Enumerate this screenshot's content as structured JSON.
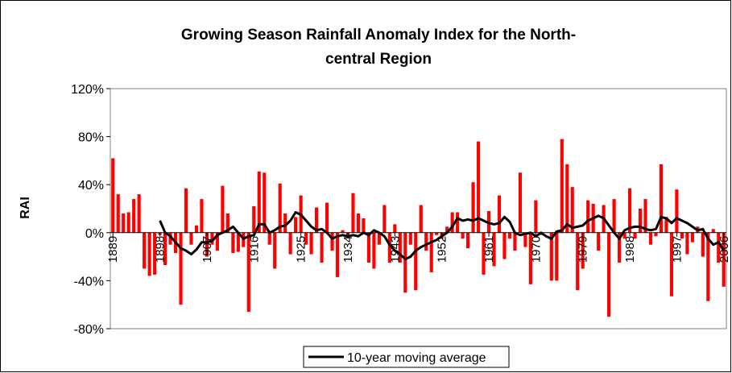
{
  "chart_data": {
    "type": "bar",
    "title": [
      "Growing Season Rainfall Anomaly Index for the North-",
      "central Region"
    ],
    "y_label": "RAI",
    "x": [
      1889,
      1890,
      1891,
      1892,
      1893,
      1894,
      1895,
      1896,
      1897,
      1898,
      1899,
      1900,
      1901,
      1902,
      1903,
      1904,
      1905,
      1906,
      1907,
      1908,
      1909,
      1910,
      1911,
      1912,
      1913,
      1914,
      1915,
      1916,
      1917,
      1918,
      1919,
      1920,
      1921,
      1922,
      1923,
      1924,
      1925,
      1926,
      1927,
      1928,
      1929,
      1930,
      1931,
      1932,
      1933,
      1934,
      1935,
      1936,
      1937,
      1938,
      1939,
      1940,
      1941,
      1942,
      1943,
      1944,
      1945,
      1946,
      1947,
      1948,
      1949,
      1950,
      1951,
      1952,
      1953,
      1954,
      1955,
      1956,
      1957,
      1958,
      1959,
      1960,
      1961,
      1962,
      1963,
      1964,
      1965,
      1966,
      1967,
      1968,
      1969,
      1970,
      1971,
      1972,
      1973,
      1974,
      1975,
      1976,
      1977,
      1978,
      1979,
      1980,
      1981,
      1982,
      1983,
      1984,
      1985,
      1986,
      1987,
      1988,
      1989,
      1990,
      1991,
      1992,
      1993,
      1994,
      1995,
      1996,
      1997,
      1998,
      1999,
      2000,
      2001,
      2002,
      2003,
      2004,
      2005,
      2006
    ],
    "xlim": [
      1888.5,
      2006.5
    ],
    "xticks": [
      1889,
      1898,
      1907,
      1916,
      1925,
      1934,
      1943,
      1952,
      1961,
      1970,
      1979,
      1988,
      1997,
      2006
    ],
    "ylim": [
      -80,
      120
    ],
    "yticks": [
      {
        "value": -80,
        "label": "-80%"
      },
      {
        "value": -40,
        "label": "-40%"
      },
      {
        "value": 0,
        "label": "0%"
      },
      {
        "value": 40,
        "label": "40%"
      },
      {
        "value": 80,
        "label": "80%"
      },
      {
        "value": 120,
        "label": "120%"
      }
    ],
    "grid": false,
    "legend": "bottom",
    "series": [
      {
        "type": "bar",
        "color": "#ff0000",
        "values": [
          62,
          32,
          16,
          17,
          28,
          32,
          -30,
          -36,
          -35,
          -2,
          -27,
          -10,
          -17,
          -60,
          37,
          -10,
          6,
          28,
          -20,
          -10,
          -15,
          39,
          16,
          -17,
          -16,
          -12,
          -66,
          22,
          51,
          50,
          -10,
          -30,
          41,
          16,
          -18,
          13,
          31,
          -10,
          -18,
          21,
          -25,
          25,
          -15,
          -37,
          2,
          -3,
          33,
          16,
          12,
          -25,
          -30,
          -10,
          23,
          -25,
          7,
          -25,
          -50,
          -10,
          -48,
          23,
          -15,
          -33,
          -2,
          -5,
          5,
          17,
          17,
          -5,
          -13,
          42,
          76,
          -35,
          18,
          -28,
          31,
          -22,
          -5,
          -15,
          50,
          -12,
          -43,
          27,
          -2,
          0,
          -40,
          -40,
          78,
          57,
          38,
          -48,
          -30,
          27,
          24,
          -15,
          23,
          -70,
          28,
          -25,
          -5,
          37,
          -5,
          20,
          28,
          -10,
          -3,
          57,
          13,
          -53,
          36,
          -5,
          -18,
          -8,
          5,
          -20,
          -57,
          3,
          -25,
          -45
        ]
      },
      {
        "type": "line",
        "name": "10-year moving average",
        "color": "#000000",
        "values": [
          null,
          null,
          null,
          null,
          null,
          null,
          null,
          null,
          null,
          10,
          0,
          -3,
          -8,
          -13,
          -15,
          -18,
          -14,
          -8,
          -8,
          -7,
          -2,
          0,
          2,
          5,
          0,
          -5,
          -3,
          -2,
          7,
          7,
          0,
          2,
          5,
          6,
          10,
          17,
          15,
          10,
          5,
          2,
          3,
          0,
          -5,
          -3,
          -2,
          -3,
          -2,
          -3,
          0,
          -2,
          2,
          0,
          -3,
          -10,
          -15,
          -18,
          -22,
          -20,
          -15,
          -12,
          -10,
          -8,
          -6,
          -3,
          0,
          5,
          12,
          10,
          11,
          10,
          12,
          10,
          8,
          7,
          8,
          13,
          9,
          0,
          -2,
          -1,
          0,
          -3,
          0,
          -3,
          -5,
          1,
          2,
          7,
          4,
          5,
          6,
          10,
          12,
          14,
          12,
          6,
          0,
          -5,
          2,
          4,
          5,
          5,
          3,
          2,
          3,
          13,
          12,
          8,
          12,
          10,
          8,
          5,
          2,
          3,
          -5,
          -10,
          -8,
          -15
        ]
      }
    ]
  }
}
